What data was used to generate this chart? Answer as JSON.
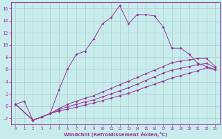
{
  "xlabel": "Windchill (Refroidissement éolien,°C)",
  "bg_color": "#c8ecec",
  "line_color": "#993399",
  "grid_color": "#aacccc",
  "xlim": [
    -0.5,
    23.5
  ],
  "ylim": [
    -3,
    17
  ],
  "xticks": [
    0,
    1,
    2,
    3,
    4,
    5,
    6,
    7,
    8,
    9,
    10,
    11,
    12,
    13,
    14,
    15,
    16,
    17,
    18,
    19,
    20,
    21,
    22,
    23
  ],
  "yticks": [
    -2,
    0,
    2,
    4,
    6,
    8,
    10,
    12,
    14,
    16
  ],
  "line1_x": [
    0,
    1,
    2,
    3,
    4,
    5,
    6,
    7,
    8,
    9,
    10,
    11,
    12,
    13,
    14,
    15,
    16,
    17,
    18,
    19,
    20,
    21,
    22,
    23
  ],
  "line1_y": [
    0.3,
    0.8,
    -2.3,
    -1.8,
    -1.2,
    2.7,
    6.1,
    8.5,
    9.0,
    11.0,
    13.5,
    14.5,
    16.5,
    13.5,
    15.0,
    15.0,
    14.8,
    13.0,
    9.5,
    9.5,
    8.5,
    7.0,
    6.5,
    6.0
  ],
  "line2_x": [
    0,
    2,
    3,
    4,
    5,
    6,
    7,
    8,
    9,
    10,
    11,
    12,
    13,
    14,
    15,
    16,
    17,
    18,
    19,
    20,
    21,
    22,
    23
  ],
  "line2_y": [
    0.3,
    -2.3,
    -1.8,
    -1.2,
    -0.8,
    -0.5,
    -0.2,
    0.2,
    0.5,
    0.9,
    1.3,
    1.7,
    2.1,
    2.6,
    3.1,
    3.6,
    4.1,
    4.6,
    5.0,
    5.4,
    5.8,
    6.3,
    6.0
  ],
  "line3_x": [
    0,
    2,
    3,
    4,
    5,
    6,
    7,
    8,
    9,
    10,
    11,
    12,
    13,
    14,
    15,
    16,
    17,
    18,
    19,
    20,
    21,
    22,
    23
  ],
  "line3_y": [
    0.3,
    -2.3,
    -1.8,
    -1.2,
    -0.6,
    -0.1,
    0.3,
    0.7,
    1.0,
    1.5,
    2.0,
    2.5,
    3.0,
    3.6,
    4.2,
    4.8,
    5.4,
    5.9,
    6.2,
    6.5,
    6.8,
    7.0,
    6.3
  ],
  "line4_x": [
    0,
    2,
    3,
    4,
    5,
    6,
    7,
    8,
    9,
    10,
    11,
    12,
    13,
    14,
    15,
    16,
    17,
    18,
    19,
    20,
    21,
    22,
    23
  ],
  "line4_y": [
    0.3,
    -2.3,
    -1.8,
    -1.2,
    -0.4,
    0.3,
    0.8,
    1.3,
    1.7,
    2.3,
    2.9,
    3.5,
    4.1,
    4.7,
    5.3,
    5.9,
    6.5,
    7.1,
    7.4,
    7.6,
    7.8,
    7.8,
    6.5
  ]
}
